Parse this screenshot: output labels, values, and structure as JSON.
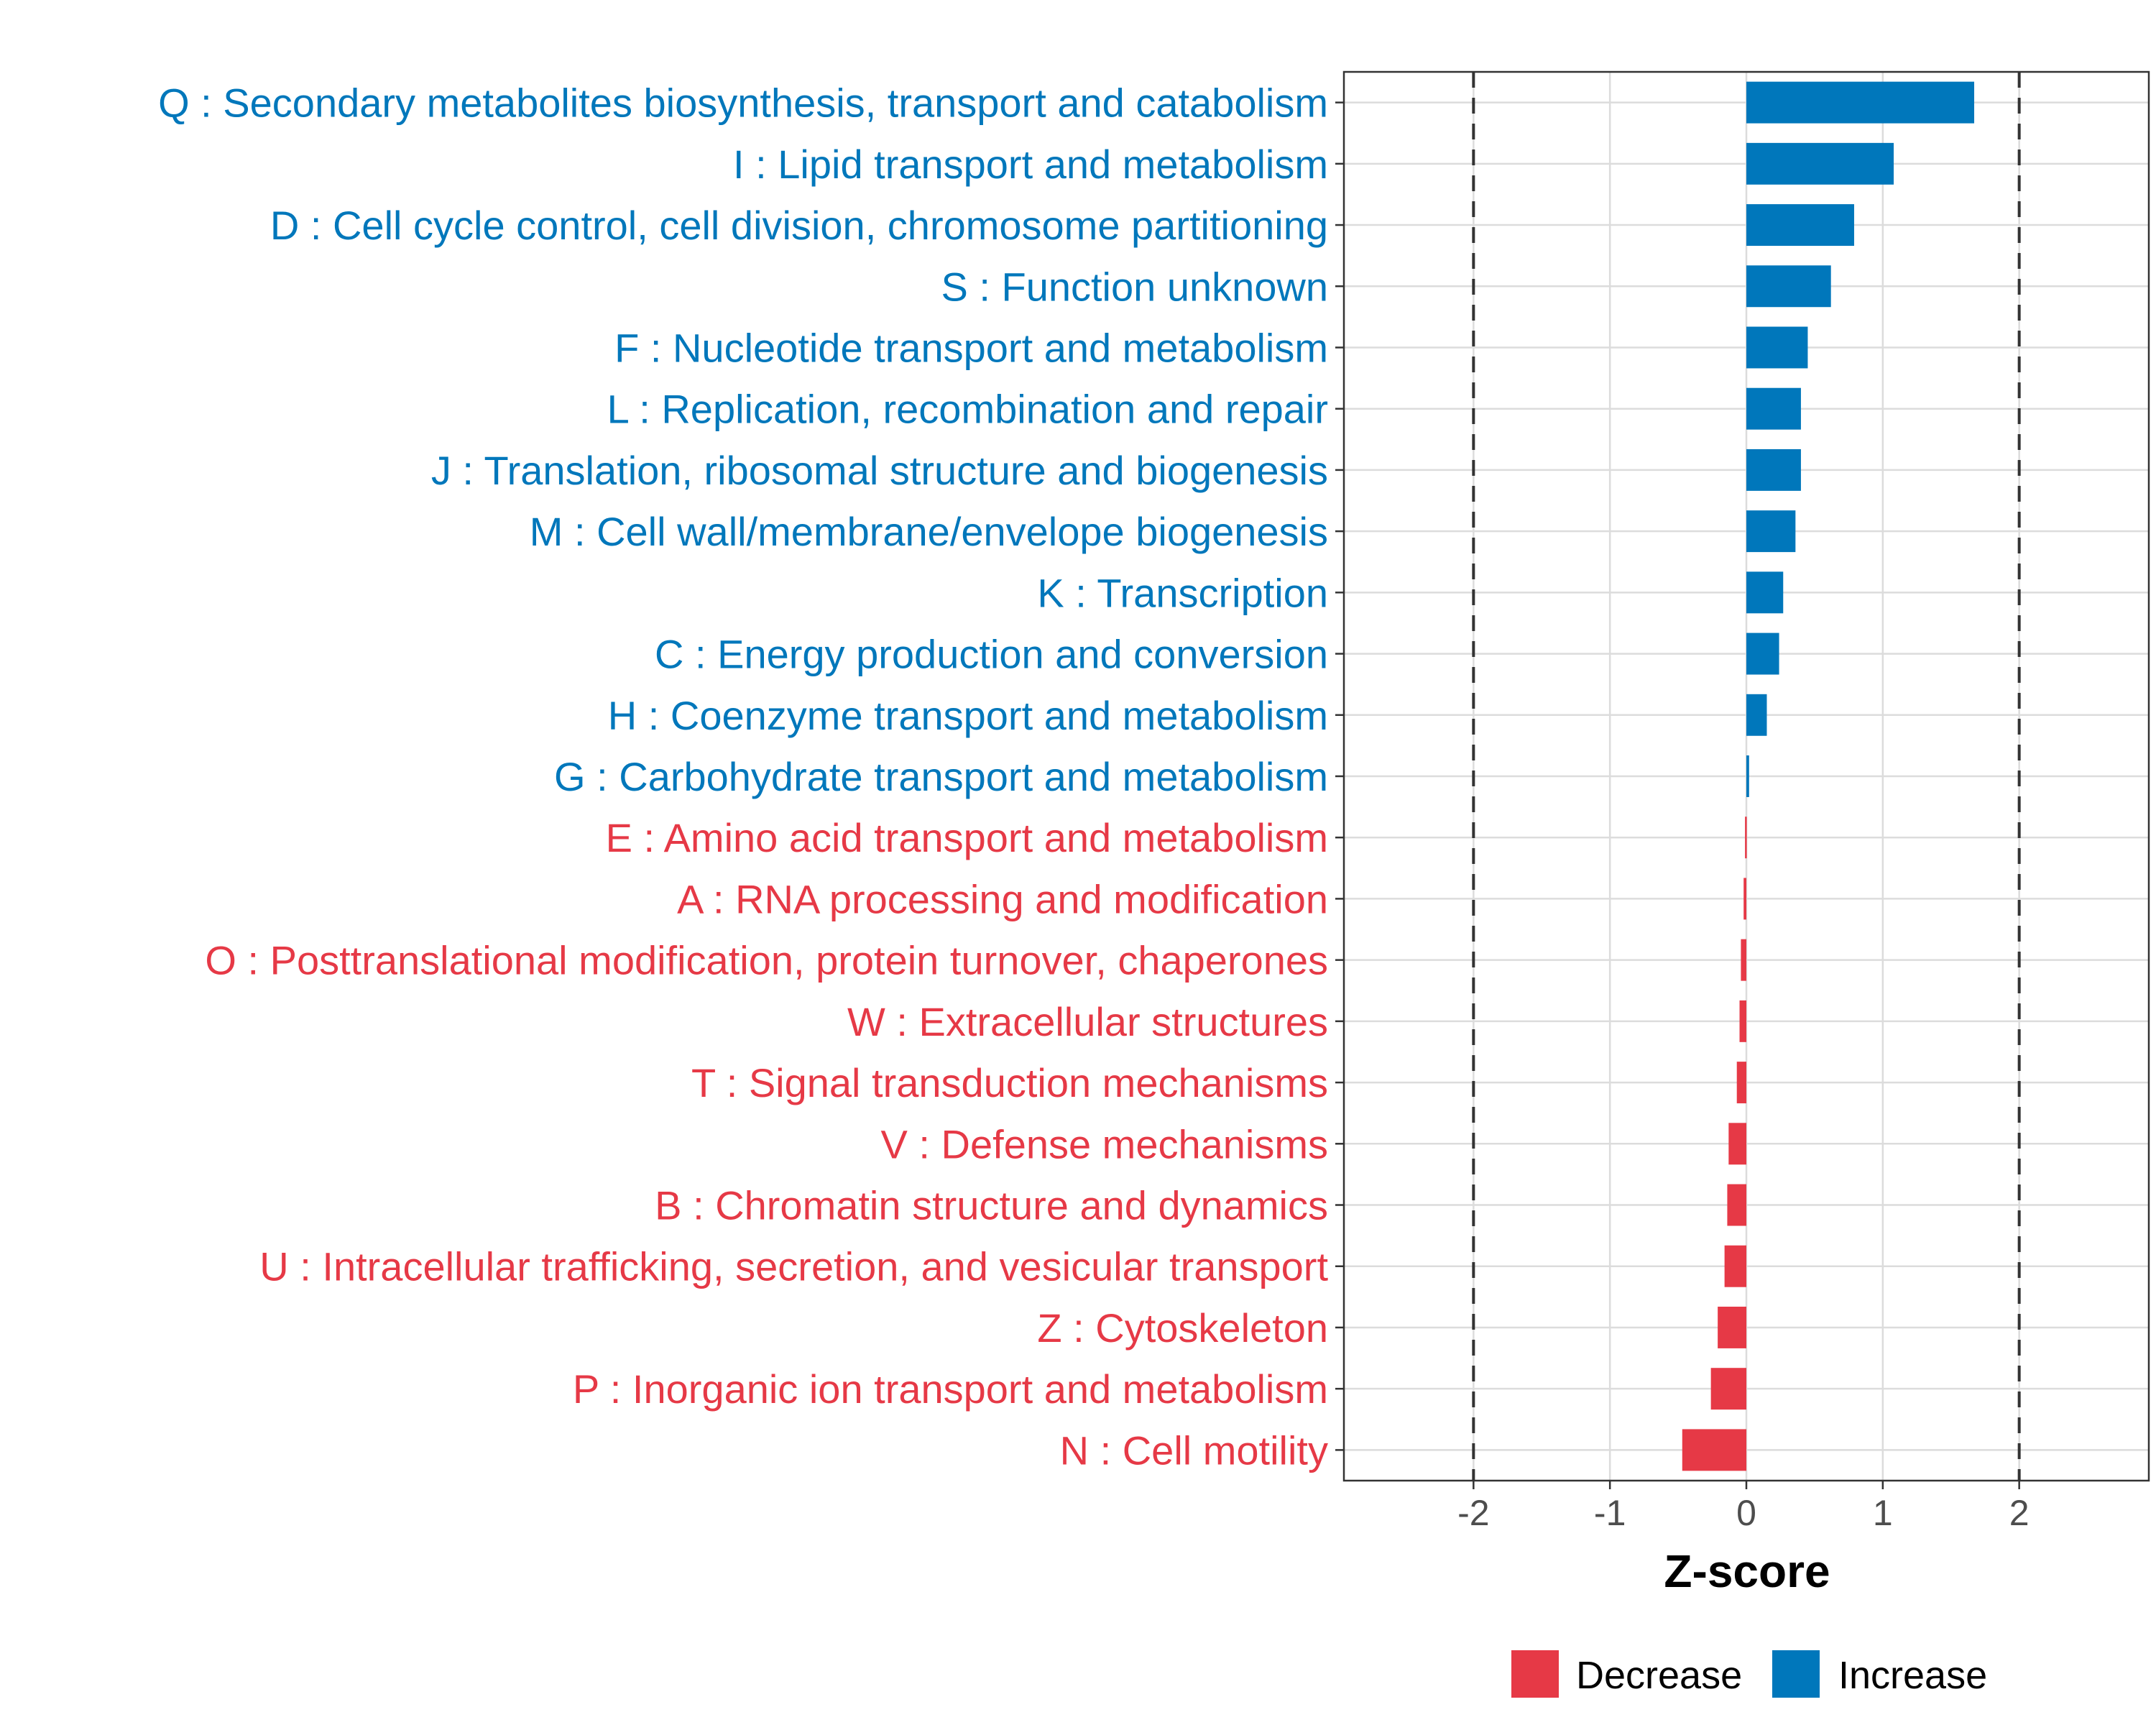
{
  "chart_data": {
    "type": "bar",
    "orientation": "horizontal",
    "xlabel": "Z-score",
    "xlim": [
      -2.95,
      2.95
    ],
    "xticks": [
      -2,
      -1,
      0,
      1,
      2
    ],
    "xtick_labels": [
      "-2",
      "-1",
      "0",
      "1",
      "2"
    ],
    "reference_lines": [
      -2,
      2
    ],
    "grid": true,
    "legend_position": "bottom",
    "legend": [
      {
        "key": "decrease",
        "label": "Decrease",
        "color": "#E63946"
      },
      {
        "key": "increase",
        "label": "Increase",
        "color": "#0077BB"
      }
    ],
    "colors": {
      "decrease": "#E63946",
      "increase": "#0077BB"
    },
    "categories": [
      "Q : Secondary metabolites biosynthesis, transport and catabolism",
      "I : Lipid transport and metabolism",
      "D : Cell cycle control, cell division, chromosome partitioning",
      "S : Function unknown",
      "F : Nucleotide transport and metabolism",
      "L : Replication, recombination and repair",
      "J : Translation, ribosomal structure and biogenesis",
      "M : Cell wall/membrane/envelope biogenesis",
      "K : Transcription",
      "C : Energy production and conversion",
      "H : Coenzyme transport and metabolism",
      "G : Carbohydrate transport and metabolism",
      "E : Amino acid transport and metabolism",
      "A : RNA processing and modification",
      "O : Posttranslational modification, protein turnover, chaperones",
      "W : Extracellular structures",
      "T : Signal transduction mechanisms",
      "V : Defense mechanisms",
      "B : Chromatin structure and dynamics",
      "U : Intracellular trafficking, secretion, and vesicular transport",
      "Z : Cytoskeleton",
      "P : Inorganic ion transport and metabolism",
      "N : Cell motility"
    ],
    "values": [
      1.67,
      1.08,
      0.79,
      0.62,
      0.45,
      0.4,
      0.4,
      0.36,
      0.27,
      0.24,
      0.15,
      0.02,
      -0.01,
      -0.02,
      -0.04,
      -0.05,
      -0.07,
      -0.13,
      -0.14,
      -0.16,
      -0.21,
      -0.26,
      -0.47
    ]
  }
}
